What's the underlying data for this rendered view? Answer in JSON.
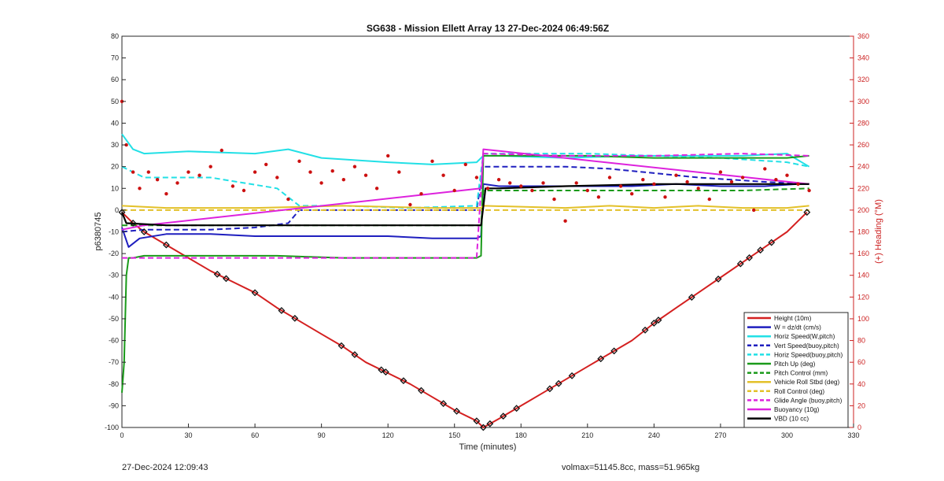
{
  "chart_data": {
    "type": "line",
    "title": "SG638 - Mission Ellett Array 13 27-Dec-2024 06:49:56Z",
    "xlabel": "Time (minutes)",
    "ylabel_left": "p6380745",
    "ylabel_right": "(+) Heading (°M)",
    "xlim": [
      0,
      330
    ],
    "ylim_left": [
      -100,
      80
    ],
    "ylim_right": [
      0,
      360
    ],
    "xticks": [
      0,
      30,
      60,
      90,
      120,
      150,
      180,
      210,
      240,
      270,
      300,
      330
    ],
    "yticks_left": [
      80,
      70,
      60,
      50,
      40,
      30,
      20,
      10,
      0,
      -10,
      -20,
      -30,
      -40,
      -50,
      -60,
      -70,
      -80,
      -90,
      -100
    ],
    "yticks_right": [
      360,
      340,
      320,
      300,
      280,
      260,
      240,
      220,
      200,
      180,
      160,
      140,
      120,
      100,
      80,
      60,
      40,
      20,
      0
    ],
    "legend_position": "lower-right",
    "colors": {
      "height": "#d42020",
      "w": "#1f1fbf",
      "horiz_w": "#22e0e6",
      "vert_buoy": "#1f1fbf",
      "horiz_buoy": "#22e0e6",
      "pitch_up": "#1a9a1a",
      "pitch_control": "#1a9a1a",
      "roll": "#e3c12a",
      "roll_control": "#e3c12a",
      "glide": "#dd22dd",
      "buoyancy": "#dd22dd",
      "vbd": "#000000",
      "heading": "#cc1010",
      "axis_right": "#cc2222"
    },
    "series": [
      {
        "name": "Height (10m)",
        "style": "solid",
        "color_key": "height",
        "x": [
          0,
          5,
          10,
          20,
          30,
          40,
          50,
          60,
          70,
          80,
          90,
          100,
          110,
          120,
          130,
          140,
          150,
          160,
          163,
          170,
          180,
          190,
          200,
          210,
          220,
          230,
          240,
          250,
          260,
          270,
          280,
          290,
          300,
          309
        ],
        "y": [
          -1,
          -6,
          -10,
          -16,
          -22,
          -28,
          -33,
          -38,
          -45,
          -51,
          -57,
          -63,
          -70,
          -75,
          -80,
          -86,
          -92,
          -97,
          -100,
          -96,
          -90,
          -84,
          -78,
          -72,
          -66,
          -60,
          -52,
          -45,
          -38,
          -31,
          -24,
          -17,
          -10,
          -1
        ]
      },
      {
        "name": "W = dz/dt (cm/s)",
        "style": "solid",
        "color_key": "w",
        "x": [
          0,
          3,
          8,
          20,
          40,
          60,
          80,
          100,
          120,
          140,
          160,
          162,
          163,
          170,
          190,
          210,
          230,
          250,
          270,
          290,
          305,
          310
        ],
        "y": [
          -8,
          -17,
          -13,
          -11,
          -11,
          -12,
          -12,
          -12,
          -12,
          -13,
          -13,
          -12,
          12,
          11,
          11,
          11,
          11,
          12,
          11,
          11,
          12,
          12
        ]
      },
      {
        "name": "Horiz Speed(W,pitch)",
        "style": "solid",
        "color_key": "horiz_w",
        "x": [
          0,
          5,
          10,
          30,
          60,
          75,
          90,
          120,
          140,
          160,
          163,
          170,
          200,
          230,
          260,
          280,
          300,
          310
        ],
        "y": [
          35,
          28,
          26,
          27,
          26,
          28,
          24,
          22,
          21,
          22,
          25,
          25,
          24,
          25,
          25,
          25,
          26,
          20
        ]
      },
      {
        "name": "Vert Speed(buoy,pitch)",
        "style": "dash",
        "color_key": "vert_buoy",
        "x": [
          0,
          10,
          40,
          60,
          75,
          80,
          100,
          120,
          160,
          163,
          180,
          200,
          220,
          240,
          260,
          290,
          310
        ],
        "y": [
          -10,
          -9,
          -9,
          -8,
          -6,
          0,
          0,
          0,
          0,
          20,
          20,
          20,
          19,
          17,
          15,
          13,
          12
        ]
      },
      {
        "name": "Horiz Speed(buoy,pitch)",
        "style": "dash",
        "color_key": "horiz_buoy",
        "x": [
          0,
          10,
          40,
          70,
          80,
          100,
          130,
          160,
          163,
          180,
          210,
          240,
          270,
          300,
          310
        ],
        "y": [
          20,
          15,
          15,
          10,
          2,
          2,
          1,
          2,
          26,
          26,
          26,
          25,
          24,
          22,
          20
        ]
      },
      {
        "name": "Pitch Up (deg)",
        "style": "solid",
        "color_key": "pitch_up",
        "x": [
          0,
          1,
          2,
          3,
          5,
          10,
          40,
          70,
          100,
          130,
          160,
          162,
          163,
          180,
          210,
          240,
          270,
          300,
          310
        ],
        "y": [
          -84,
          -70,
          -30,
          -22,
          -22,
          -21,
          -21,
          -21,
          -22,
          -22,
          -22,
          -21,
          25,
          25,
          25,
          24,
          24,
          24,
          25
        ]
      },
      {
        "name": "Pitch Control (mm)",
        "style": "dash",
        "color_key": "pitch_control",
        "x": [
          0,
          20,
          60,
          100,
          140,
          162,
          163,
          200,
          240,
          280,
          310
        ],
        "y": [
          -7,
          -7,
          -7,
          -7,
          -7,
          -7,
          9,
          9,
          9,
          9,
          10
        ]
      },
      {
        "name": "Vehicle Roll Stbd (deg)",
        "style": "solid",
        "color_key": "roll",
        "x": [
          0,
          20,
          60,
          100,
          140,
          162,
          163,
          200,
          220,
          240,
          260,
          280,
          300,
          310
        ],
        "y": [
          2,
          1,
          1,
          2,
          1,
          1,
          2,
          1,
          2,
          1,
          2,
          1,
          1,
          2
        ]
      },
      {
        "name": "Roll Control (deg)",
        "style": "dash",
        "color_key": "roll_control",
        "x": [
          0,
          40,
          80,
          120,
          160,
          163,
          200,
          240,
          280,
          310
        ],
        "y": [
          0,
          0,
          0,
          0,
          0,
          0,
          0,
          0,
          0,
          0
        ]
      },
      {
        "name": "Glide Angle (buoy,pitch)",
        "style": "dash",
        "color_key": "glide",
        "x": [
          0,
          10,
          40,
          80,
          120,
          160,
          163,
          200,
          240,
          280,
          310
        ],
        "y": [
          -22,
          -22,
          -22,
          -22,
          -22,
          -22,
          26,
          25,
          25,
          26,
          25
        ]
      },
      {
        "name": "Buoyancy (10g)",
        "style": "solid",
        "color_key": "buoyancy",
        "x": [
          0,
          10,
          162,
          163,
          310
        ],
        "y": [
          -9,
          -7,
          10,
          28,
          12
        ]
      },
      {
        "name": "VBD (10 cc)",
        "style": "solid",
        "color_key": "vbd",
        "x": [
          0,
          2,
          20,
          60,
          100,
          140,
          160,
          162,
          164,
          170,
          200,
          240,
          280,
          310
        ],
        "y": [
          -1,
          -6,
          -7,
          -7,
          -7,
          -7,
          -7,
          -7,
          10,
          10,
          11,
          12,
          12,
          12
        ]
      }
    ],
    "heading": {
      "name": "Heading",
      "axis": "right",
      "x": [
        0,
        2,
        5,
        8,
        12,
        16,
        20,
        25,
        30,
        35,
        40,
        45,
        50,
        55,
        60,
        65,
        70,
        75,
        80,
        85,
        90,
        95,
        100,
        105,
        110,
        115,
        120,
        125,
        130,
        135,
        140,
        145,
        150,
        155,
        160,
        165,
        170,
        175,
        180,
        185,
        190,
        195,
        200,
        205,
        210,
        215,
        220,
        225,
        230,
        235,
        240,
        245,
        250,
        255,
        260,
        265,
        270,
        275,
        280,
        285,
        290,
        295,
        300,
        305,
        310
      ],
      "y": [
        300,
        260,
        235,
        220,
        235,
        228,
        215,
        225,
        235,
        232,
        240,
        255,
        222,
        218,
        235,
        242,
        230,
        210,
        245,
        235,
        225,
        236,
        228,
        240,
        232,
        220,
        250,
        235,
        205,
        215,
        245,
        232,
        218,
        242,
        230,
        220,
        228,
        225,
        222,
        218,
        225,
        210,
        190,
        225,
        218,
        212,
        230,
        222,
        215,
        228,
        224,
        212,
        232,
        226,
        220,
        210,
        235,
        226,
        230,
        200,
        238,
        228,
        232,
        224,
        218
      ]
    },
    "markers": {
      "name": "Height markers",
      "x": [
        0,
        5,
        10,
        20,
        43,
        47,
        60,
        72,
        78,
        99,
        105,
        117,
        119,
        127,
        135,
        145,
        151,
        160,
        163,
        166,
        172,
        178,
        193,
        197,
        203,
        216,
        222,
        236,
        240,
        242,
        257,
        269,
        279,
        283,
        288,
        293,
        309
      ]
    }
  },
  "footer": {
    "left": "27-Dec-2024 12:09:43",
    "right": "volmax=51145.8cc, mass=51.965kg"
  }
}
